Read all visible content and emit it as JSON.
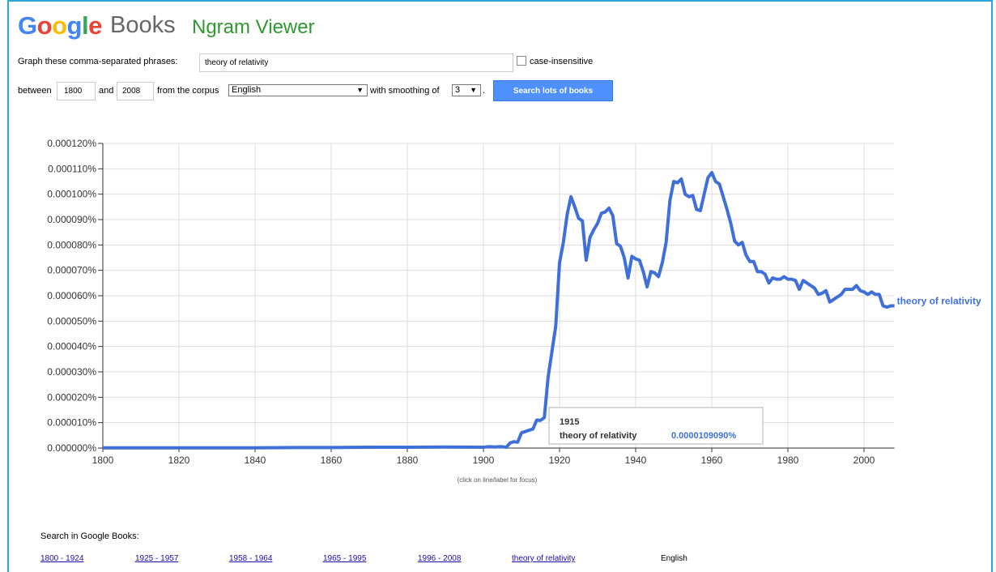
{
  "header": {
    "logo": "Google",
    "logo_colors": [
      "#4285f4",
      "#ea4335",
      "#fbbc05",
      "#4285f4",
      "#34a853",
      "#ea4335"
    ],
    "brand": "Books",
    "title": "Ngram Viewer"
  },
  "form": {
    "phrases_label": "Graph these comma-separated phrases:",
    "phrases": "theory of relativity",
    "case_label": "case-insensitive",
    "between": "between",
    "start_year": "1800",
    "and": "and",
    "end_year": "2008",
    "corpus_label": "from the corpus",
    "corpus": "English",
    "smoothing_label": "with smoothing of",
    "smoothing": "3",
    "period": ".",
    "button": "Search lots of books"
  },
  "chart_data": {
    "type": "line",
    "x": [
      1800,
      1810,
      1820,
      1830,
      1840,
      1850,
      1860,
      1870,
      1880,
      1890,
      1900,
      1901,
      1902,
      1903,
      1904,
      1905,
      1906,
      1907,
      1908,
      1909,
      1910,
      1911,
      1912,
      1913,
      1914,
      1915,
      1916,
      1917,
      1918,
      1919,
      1920,
      1921,
      1922,
      1923,
      1924,
      1925,
      1926,
      1927,
      1928,
      1929,
      1930,
      1931,
      1932,
      1933,
      1934,
      1935,
      1936,
      1937,
      1938,
      1939,
      1940,
      1941,
      1942,
      1943,
      1944,
      1945,
      1946,
      1947,
      1948,
      1949,
      1950,
      1951,
      1952,
      1953,
      1954,
      1955,
      1956,
      1957,
      1958,
      1959,
      1960,
      1961,
      1962,
      1963,
      1964,
      1965,
      1966,
      1967,
      1968,
      1969,
      1970,
      1971,
      1972,
      1973,
      1974,
      1975,
      1976,
      1977,
      1978,
      1979,
      1980,
      1981,
      1982,
      1983,
      1984,
      1985,
      1986,
      1987,
      1988,
      1989,
      1990,
      1991,
      1992,
      1993,
      1994,
      1995,
      1996,
      1997,
      1998,
      1999,
      2000,
      2001,
      2002,
      2003,
      2004,
      2005,
      2006,
      2007,
      2008
    ],
    "series": [
      {
        "name": "theory of relativity",
        "color": "#3f6fd8",
        "values": [
          1e-07,
          1e-07,
          1e-07,
          1e-07,
          1e-07,
          2e-07,
          2e-07,
          3e-07,
          3e-07,
          4e-07,
          3e-07,
          5e-07,
          5e-07,
          4e-07,
          5e-07,
          5e-07,
          3e-07,
          2e-06,
          2.5e-06,
          2.3e-06,
          6e-06,
          6.5e-06,
          7e-06,
          7.5e-06,
          1.1e-05,
          1.0909e-05,
          1.2e-05,
          2.8e-05,
          3.8e-05,
          4.8e-05,
          7.3e-05,
          8.1e-05,
          9.2e-05,
          9.9e-05,
          9.5e-05,
          9.05e-05,
          8.95e-05,
          7.4e-05,
          8.3e-05,
          8.6e-05,
          8.85e-05,
          9.25e-05,
          9.3e-05,
          9.45e-05,
          9.15e-05,
          8.05e-05,
          7.95e-05,
          7.5e-05,
          6.7e-05,
          7.55e-05,
          7.45e-05,
          7.4e-05,
          6.95e-05,
          6.35e-05,
          6.95e-05,
          6.9e-05,
          6.75e-05,
          7.3e-05,
          8.1e-05,
          9.75e-05,
          0.000105,
          0.0001045,
          0.000106,
          0.0001,
          9.9e-05,
          9.95e-05,
          9.4e-05,
          9.35e-05,
          0.0001,
          0.0001065,
          0.0001085,
          0.000105,
          0.000104,
          9.9e-05,
          9.4e-05,
          8.85e-05,
          8.15e-05,
          8e-05,
          8.1e-05,
          7.6e-05,
          7.35e-05,
          7.35e-05,
          6.95e-05,
          6.95e-05,
          6.85e-05,
          6.5e-05,
          6.7e-05,
          6.65e-05,
          6.65e-05,
          6.75e-05,
          6.65e-05,
          6.65e-05,
          6.6e-05,
          6.25e-05,
          6.6e-05,
          6.5e-05,
          6.4e-05,
          6.3e-05,
          6.05e-05,
          6.1e-05,
          6.2e-05,
          5.75e-05,
          5.85e-05,
          5.95e-05,
          6.05e-05,
          6.25e-05,
          6.25e-05,
          6.25e-05,
          6.4e-05,
          6.2e-05,
          6.15e-05,
          6.05e-05,
          6.15e-05,
          6.05e-05,
          6.05e-05,
          5.6e-05,
          5.55e-05,
          5.6e-05,
          5.6e-05
        ]
      }
    ],
    "xlim": [
      1800,
      2008
    ],
    "xticks": [
      1800,
      1820,
      1840,
      1860,
      1880,
      1900,
      1920,
      1940,
      1960,
      1980,
      2000
    ],
    "ylim": [
      0,
      0.00012
    ],
    "yticks": [
      {
        "value": 0,
        "label": "0.000000%"
      },
      {
        "value": 1e-05,
        "label": "0.000010%"
      },
      {
        "value": 2e-05,
        "label": "0.000020%"
      },
      {
        "value": 3e-05,
        "label": "0.000030%"
      },
      {
        "value": 4e-05,
        "label": "0.000040%"
      },
      {
        "value": 5e-05,
        "label": "0.000050%"
      },
      {
        "value": 6e-05,
        "label": "0.000060%"
      },
      {
        "value": 7e-05,
        "label": "0.000070%"
      },
      {
        "value": 8e-05,
        "label": "0.000080%"
      },
      {
        "value": 9e-05,
        "label": "0.000090%"
      },
      {
        "value": 0.0001,
        "label": "0.000100%"
      },
      {
        "value": 0.00011,
        "label": "0.000110%"
      },
      {
        "value": 0.00012,
        "label": "0.000120%"
      }
    ],
    "grid": true,
    "tooltip": {
      "x": "1915",
      "value": 1.0909e-05,
      "label": "0.0000109090%"
    },
    "note": "(click on line/label for focus)"
  },
  "search": {
    "label": "Search in Google Books:",
    "links": [
      "1800 - 1924",
      "1925 - 1957",
      "1958 - 1964",
      "1965 - 1995",
      "1996 - 2008",
      "theory of relativity"
    ],
    "corpus": "English"
  }
}
